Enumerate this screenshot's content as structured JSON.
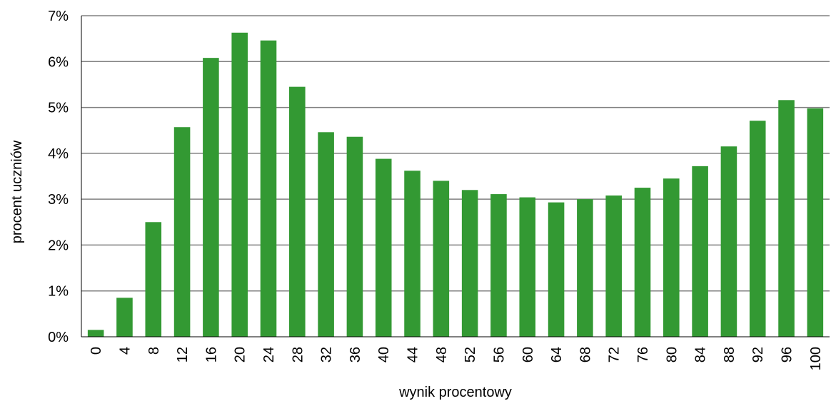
{
  "chart_data": {
    "type": "bar",
    "title": "",
    "xlabel": "wynik procentowy",
    "ylabel": "procent uczniów",
    "ylim": [
      0,
      7
    ],
    "yticks": [
      "0%",
      "1%",
      "2%",
      "3%",
      "4%",
      "5%",
      "6%",
      "7%"
    ],
    "grid": true,
    "bar_color": "#339933",
    "categories": [
      "0",
      "4",
      "8",
      "12",
      "16",
      "20",
      "24",
      "28",
      "32",
      "36",
      "40",
      "44",
      "48",
      "52",
      "56",
      "60",
      "64",
      "68",
      "72",
      "76",
      "80",
      "84",
      "88",
      "92",
      "96",
      "100"
    ],
    "values": [
      0.15,
      0.85,
      2.5,
      4.57,
      6.08,
      6.63,
      6.46,
      5.45,
      4.46,
      4.36,
      3.88,
      3.62,
      3.4,
      3.2,
      3.11,
      3.04,
      2.93,
      3.0,
      3.08,
      3.25,
      3.45,
      3.72,
      4.15,
      4.71,
      5.16,
      4.98
    ]
  }
}
